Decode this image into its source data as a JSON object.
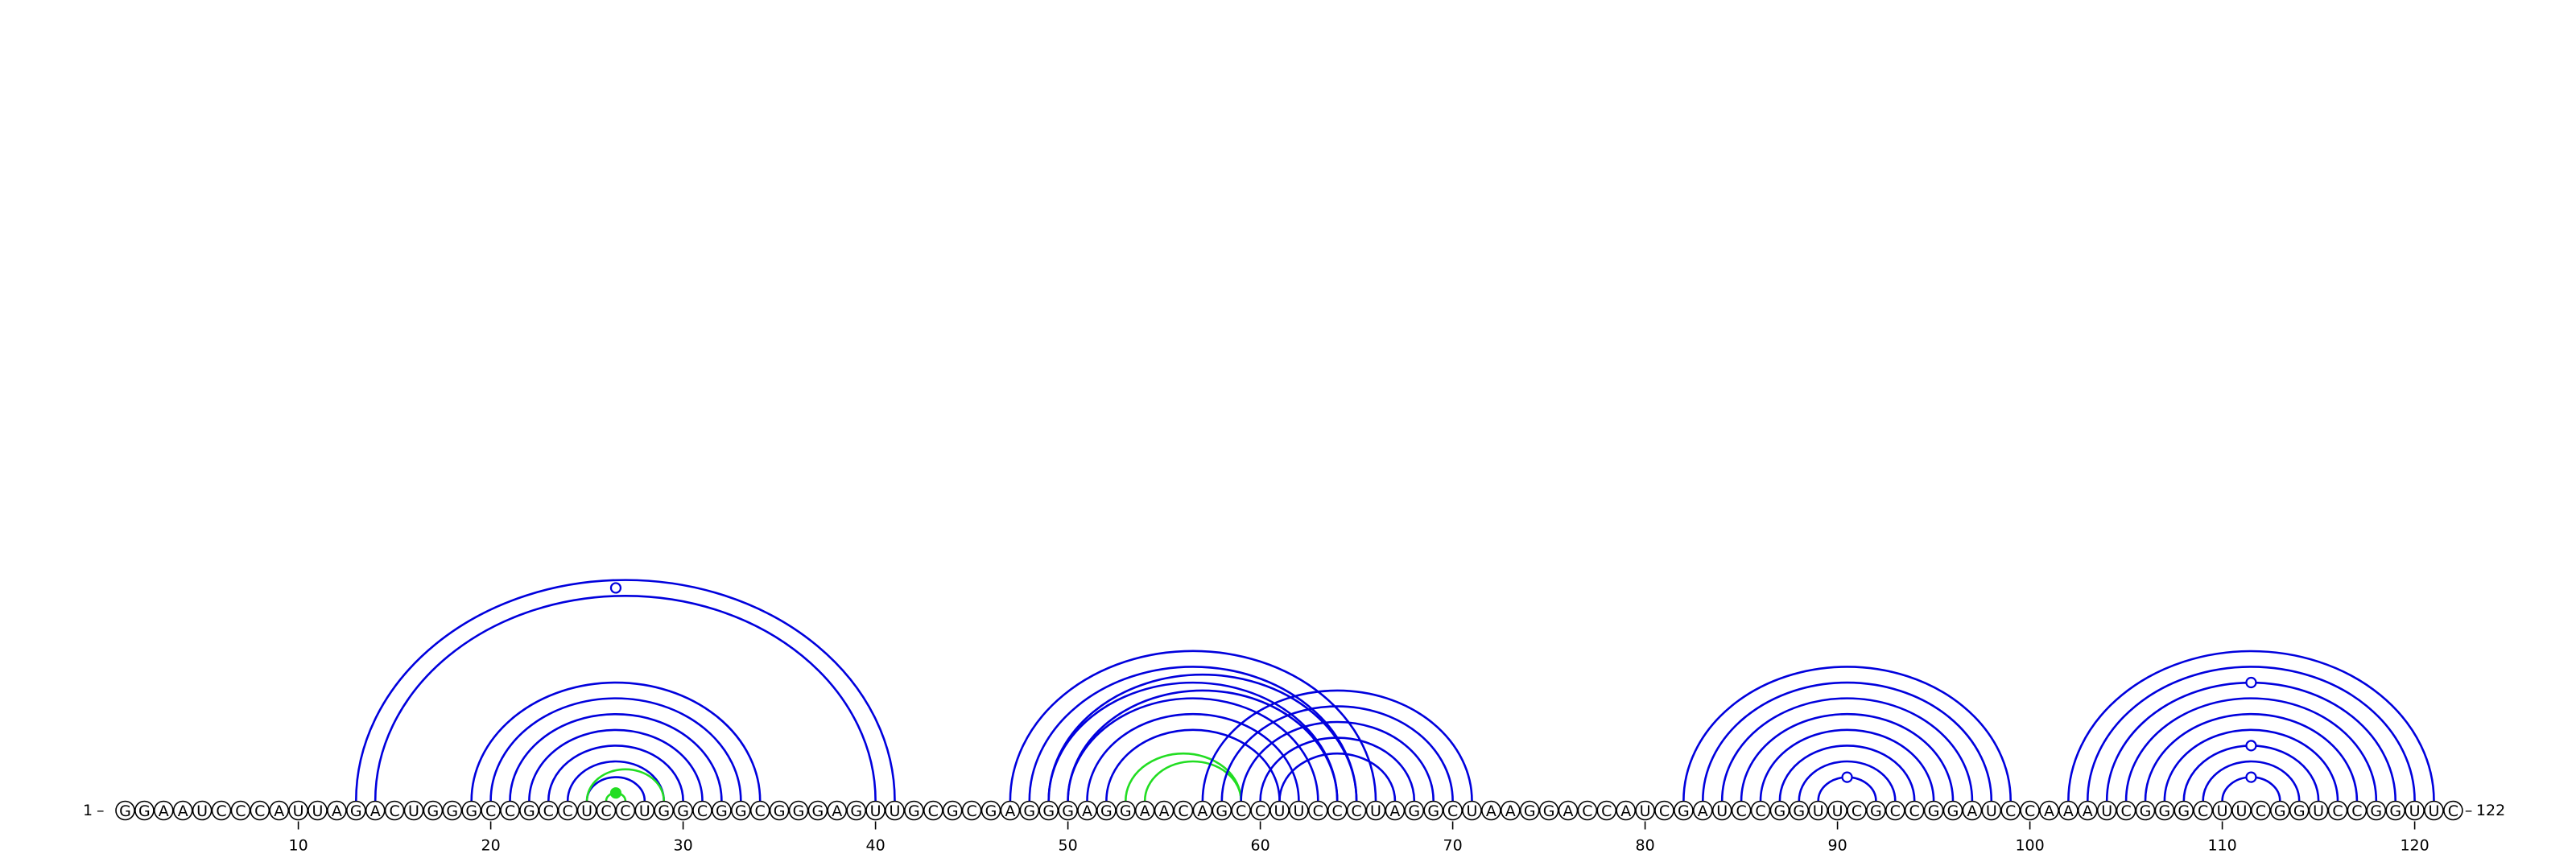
{
  "sequence": "GGAAUCCCAUUAGACUGGGCCGCCUCCUGGCGGCGGGAGUUGCGCGAGGGAGGAACAGCCUUCCCUAGGCUAAGGACCAUCGAUCCGGUUCGCCGGAUCCAAAUCGGGCUUCGGUCCGGUUC",
  "length_start_label": "1",
  "length_end_label": "122",
  "start_dash": "–",
  "end_dash": "–",
  "tick_positions": [
    10,
    20,
    30,
    40,
    50,
    60,
    70,
    80,
    90,
    100,
    110,
    120
  ],
  "tick_labels": [
    "10",
    "20",
    "30",
    "40",
    "50",
    "60",
    "70",
    "80",
    "90",
    "100",
    "110",
    "120"
  ],
  "colors": {
    "pair": "#0000dd",
    "highlight": "#22dd22"
  },
  "arcs": [
    {
      "i": 13,
      "j": 41,
      "color": "pair"
    },
    {
      "i": 14,
      "j": 40,
      "color": "pair"
    },
    {
      "i": 19,
      "j": 34,
      "color": "pair"
    },
    {
      "i": 20,
      "j": 33,
      "color": "pair"
    },
    {
      "i": 21,
      "j": 32,
      "color": "pair"
    },
    {
      "i": 22,
      "j": 31,
      "color": "pair"
    },
    {
      "i": 23,
      "j": 30,
      "color": "pair"
    },
    {
      "i": 24,
      "j": 29,
      "color": "pair"
    },
    {
      "i": 25,
      "j": 28,
      "color": "pair"
    },
    {
      "i": 26,
      "j": 27,
      "color": "highlight"
    },
    {
      "i": 25,
      "j": 29,
      "color": "highlight"
    },
    {
      "i": 47,
      "j": 66,
      "color": "pair"
    },
    {
      "i": 48,
      "j": 65,
      "color": "pair"
    },
    {
      "i": 49,
      "j": 65,
      "color": "pair"
    },
    {
      "i": 49,
      "j": 64,
      "color": "pair"
    },
    {
      "i": 50,
      "j": 64,
      "color": "pair"
    },
    {
      "i": 50,
      "j": 63,
      "color": "pair"
    },
    {
      "i": 51,
      "j": 62,
      "color": "pair"
    },
    {
      "i": 52,
      "j": 61,
      "color": "pair"
    },
    {
      "i": 53,
      "j": 59,
      "color": "highlight"
    },
    {
      "i": 54,
      "j": 59,
      "color": "highlight"
    },
    {
      "i": 57,
      "j": 71,
      "color": "pair"
    },
    {
      "i": 58,
      "j": 70,
      "color": "pair"
    },
    {
      "i": 59,
      "j": 69,
      "color": "pair"
    },
    {
      "i": 60,
      "j": 68,
      "color": "pair"
    },
    {
      "i": 61,
      "j": 67,
      "color": "pair"
    },
    {
      "i": 82,
      "j": 99,
      "color": "pair"
    },
    {
      "i": 83,
      "j": 98,
      "color": "pair"
    },
    {
      "i": 84,
      "j": 97,
      "color": "pair"
    },
    {
      "i": 85,
      "j": 96,
      "color": "pair"
    },
    {
      "i": 86,
      "j": 95,
      "color": "pair"
    },
    {
      "i": 87,
      "j": 94,
      "color": "pair"
    },
    {
      "i": 88,
      "j": 93,
      "color": "pair"
    },
    {
      "i": 89,
      "j": 92,
      "color": "pair"
    },
    {
      "i": 102,
      "j": 121,
      "color": "pair"
    },
    {
      "i": 103,
      "j": 120,
      "color": "pair"
    },
    {
      "i": 104,
      "j": 119,
      "color": "pair"
    },
    {
      "i": 105,
      "j": 118,
      "color": "pair"
    },
    {
      "i": 106,
      "j": 117,
      "color": "pair"
    },
    {
      "i": 107,
      "j": 116,
      "color": "pair"
    },
    {
      "i": 108,
      "j": 115,
      "color": "pair"
    },
    {
      "i": 109,
      "j": 114,
      "color": "pair"
    },
    {
      "i": 110,
      "j": 113,
      "color": "pair"
    }
  ],
  "markers": [
    {
      "pos": 26.5,
      "over_i": 13,
      "over_j": 40,
      "style": "open",
      "color": "pair"
    },
    {
      "pos": 26.5,
      "over_i": 26,
      "over_j": 27,
      "style": "filled",
      "color": "highlight"
    },
    {
      "pos": 90.5,
      "over_i": 89,
      "over_j": 92,
      "style": "open",
      "color": "pair"
    },
    {
      "pos": 111.5,
      "over_i": 110,
      "over_j": 113,
      "style": "open",
      "color": "pair"
    },
    {
      "pos": 111.5,
      "over_i": 108,
      "over_j": 115,
      "style": "open",
      "color": "pair"
    },
    {
      "pos": 111.5,
      "over_i": 104,
      "over_j": 119,
      "style": "open",
      "color": "pair"
    }
  ]
}
